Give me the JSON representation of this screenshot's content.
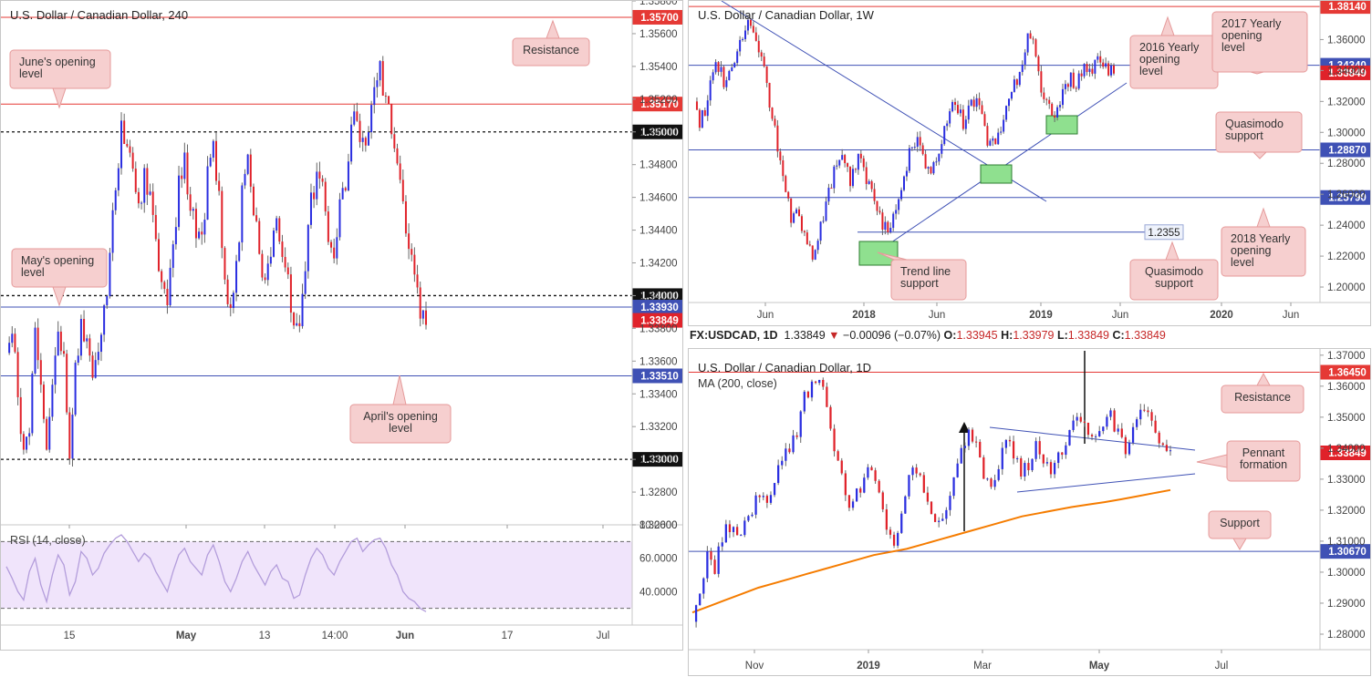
{
  "header_bar": {
    "symbol": "FX:USDCAD, 1D",
    "price": "1.33849",
    "arrow": "▼",
    "change": "−0.00096 (−0.07%)",
    "o_label": "O:",
    "o": "1.33945",
    "h_label": "H:",
    "h": "1.33979",
    "l_label": "L:",
    "l": "1.33849",
    "c_label": "C:",
    "c": "1.33849"
  },
  "colors": {
    "up": "#2a2ee0",
    "down": "#e0222a",
    "resistance": "#e53935",
    "support": "#3f51b5",
    "callout_bg": "#f6cfcf",
    "callout_border": "#e59a9a",
    "green_box": "#8fe08f",
    "ma": "#f57c00",
    "rsi_band": "#f0e4fb",
    "rsi_line": "#b39ddb"
  },
  "chart_data": [
    {
      "id": "h4",
      "type": "candlestick",
      "title": "U.S. Dollar / Canadian Dollar, 240",
      "ylim": [
        1.326,
        1.358
      ],
      "y_ticks": [
        "1.35800",
        "1.35600",
        "1.35400",
        "1.35200",
        "1.35000",
        "1.34800",
        "1.34600",
        "1.34400",
        "1.34200",
        "1.34000",
        "1.33800",
        "1.33600",
        "1.33400",
        "1.33200",
        "1.33000",
        "1.32800",
        "1.32600"
      ],
      "x_ticks": [
        "15",
        "May",
        "13",
        "14:00",
        "Jun",
        "17",
        "Jul"
      ],
      "levels": [
        {
          "value": 1.357,
          "label": "1.35700",
          "style": "solid",
          "color": "#e53935"
        },
        {
          "value": 1.3517,
          "label": "1.35170",
          "style": "solid",
          "color": "#e53935"
        },
        {
          "value": 1.35,
          "label": "1.35000",
          "style": "dashed",
          "color": "#111111"
        },
        {
          "value": 1.34,
          "label": "1.34000",
          "style": "dashed",
          "color": "#111111"
        },
        {
          "value": 1.3393,
          "label": "1.33930",
          "style": "solid",
          "color": "#3f51b5"
        },
        {
          "value": 1.33849,
          "label": "1.33849",
          "style": "price",
          "color": "#e53935"
        },
        {
          "value": 1.3351,
          "label": "1.33510",
          "style": "solid",
          "color": "#3f51b5"
        },
        {
          "value": 1.33,
          "label": "1.33000",
          "style": "dashed",
          "color": "#111111"
        }
      ],
      "callouts": [
        {
          "text": "Resistance"
        },
        {
          "text": "June's opening level"
        },
        {
          "text": "May's opening level"
        },
        {
          "text": "April's opening level"
        }
      ],
      "path": [
        1.3365,
        1.3378,
        1.334,
        1.33,
        1.332,
        1.3375,
        1.3338,
        1.3298,
        1.335,
        1.3386,
        1.3362,
        1.33,
        1.3352,
        1.339,
        1.337,
        1.3345,
        1.3362,
        1.3388,
        1.3425,
        1.347,
        1.35,
        1.3495,
        1.3478,
        1.345,
        1.3472,
        1.346,
        1.343,
        1.341,
        1.3388,
        1.343,
        1.3468,
        1.348,
        1.3455,
        1.344,
        1.343,
        1.3472,
        1.3495,
        1.3458,
        1.341,
        1.339,
        1.3418,
        1.346,
        1.3482,
        1.345,
        1.3428,
        1.3405,
        1.343,
        1.3445,
        1.342,
        1.341,
        1.3376,
        1.338,
        1.342,
        1.3455,
        1.3478,
        1.3468,
        1.344,
        1.343,
        1.3452,
        1.3472,
        1.3502,
        1.3512,
        1.349,
        1.3505,
        1.353,
        1.354,
        1.352,
        1.35,
        1.3482,
        1.345,
        1.343,
        1.342,
        1.339,
        1.3385
      ],
      "rsi": {
        "label": "RSI (14, close)",
        "ylim": [
          20,
          80
        ],
        "y_ticks": [
          "80.0000",
          "60.0000",
          "40.0000"
        ],
        "band": [
          30,
          70
        ],
        "values": [
          55,
          48,
          40,
          35,
          52,
          60,
          44,
          34,
          50,
          62,
          56,
          38,
          46,
          64,
          60,
          50,
          54,
          63,
          68,
          72,
          74,
          70,
          64,
          58,
          63,
          60,
          52,
          46,
          40,
          52,
          62,
          66,
          58,
          54,
          50,
          62,
          68,
          58,
          46,
          40,
          48,
          58,
          64,
          56,
          50,
          44,
          52,
          56,
          48,
          46,
          36,
          38,
          50,
          60,
          66,
          62,
          54,
          50,
          58,
          64,
          70,
          72,
          64,
          68,
          71,
          72,
          66,
          56,
          50,
          40,
          36,
          34,
          30,
          28
        ]
      }
    },
    {
      "id": "w1",
      "type": "candlestick",
      "title": "U.S. Dollar / Canadian Dollar, 1W",
      "ylim": [
        1.19,
        1.385
      ],
      "y_ticks": [
        "1.36000",
        "1.34000",
        "1.32000",
        "1.30000",
        "1.28000",
        "1.26000",
        "1.24000",
        "1.22000",
        "1.20000"
      ],
      "x_ticks": [
        "Jun",
        "2018",
        "Jun",
        "2019",
        "Jun",
        "2020",
        "Jun"
      ],
      "levels": [
        {
          "value": 1.3814,
          "label": "1.38140",
          "style": "solid",
          "color": "#e53935"
        },
        {
          "value": 1.3434,
          "label": "1.34340",
          "style": "solid",
          "color": "#3f51b5"
        },
        {
          "value": 1.33849,
          "label": "1.33849",
          "style": "price",
          "color": "#e53935"
        },
        {
          "value": 1.2887,
          "label": "1.28870",
          "style": "solid",
          "color": "#3f51b5"
        },
        {
          "value": 1.2579,
          "label": "1.25790",
          "style": "solid",
          "color": "#3f51b5"
        },
        {
          "value": 1.2355,
          "label": "1.2355",
          "style": "short",
          "color": "#3f51b5"
        }
      ],
      "callouts": [
        {
          "text": "2016 Yearly opening level"
        },
        {
          "text": "2017 Yearly opening level"
        },
        {
          "text": "Quasimodo support"
        },
        {
          "text": "2018 Yearly opening level"
        },
        {
          "text": "Quasimodo support"
        },
        {
          "text": "Trend line support"
        }
      ],
      "path": [
        1.32,
        1.305,
        1.315,
        1.335,
        1.345,
        1.338,
        1.33,
        1.34,
        1.35,
        1.362,
        1.37,
        1.365,
        1.35,
        1.34,
        1.32,
        1.3,
        1.28,
        1.26,
        1.245,
        1.25,
        1.24,
        1.23,
        1.22,
        1.23,
        1.245,
        1.26,
        1.275,
        1.285,
        1.28,
        1.27,
        1.28,
        1.288,
        1.27,
        1.26,
        1.25,
        1.24,
        1.235,
        1.245,
        1.26,
        1.275,
        1.285,
        1.295,
        1.29,
        1.28,
        1.27,
        1.285,
        1.295,
        1.305,
        1.32,
        1.315,
        1.305,
        1.315,
        1.32,
        1.315,
        1.3,
        1.29,
        1.295,
        1.305,
        1.315,
        1.325,
        1.335,
        1.345,
        1.36,
        1.365,
        1.335,
        1.325,
        1.315,
        1.31,
        1.32,
        1.33,
        1.335,
        1.33,
        1.338,
        1.342,
        1.34,
        1.345,
        1.343,
        1.34,
        1.3385
      ]
    },
    {
      "id": "d1",
      "type": "candlestick",
      "title": "U.S. Dollar / Canadian Dollar, 1D",
      "ylim": [
        1.275,
        1.372
      ],
      "y_ticks": [
        "1.37000",
        "1.36000",
        "1.35000",
        "1.34000",
        "1.33000",
        "1.32000",
        "1.31000",
        "1.30000",
        "1.29000",
        "1.28000"
      ],
      "x_ticks": [
        "Nov",
        "2019",
        "Mar",
        "May",
        "Jul"
      ],
      "levels": [
        {
          "value": 1.3645,
          "label": "1.36450",
          "style": "solid",
          "color": "#e53935"
        },
        {
          "value": 1.33849,
          "label": "1.33849",
          "style": "price",
          "color": "#e53935"
        },
        {
          "value": 1.3067,
          "label": "1.30670",
          "style": "solid",
          "color": "#3f51b5"
        }
      ],
      "indicator": {
        "label": "MA (200, close)",
        "color": "#f57c00",
        "values": [
          1.287,
          1.289,
          1.291,
          1.293,
          1.295,
          1.2965,
          1.298,
          1.2995,
          1.301,
          1.3025,
          1.304,
          1.3055,
          1.3065,
          1.3075,
          1.309,
          1.3105,
          1.312,
          1.3135,
          1.315,
          1.3165,
          1.318,
          1.319,
          1.32,
          1.321,
          1.3218,
          1.3226,
          1.3235,
          1.3245,
          1.3255,
          1.3265
        ]
      },
      "callouts": [
        {
          "text": "Resistance"
        },
        {
          "text": "Pennant formation"
        },
        {
          "text": "Support"
        }
      ],
      "path": [
        1.284,
        1.295,
        1.305,
        1.3,
        1.312,
        1.315,
        1.31,
        1.315,
        1.32,
        1.325,
        1.322,
        1.33,
        1.335,
        1.34,
        1.345,
        1.356,
        1.36,
        1.364,
        1.355,
        1.34,
        1.33,
        1.322,
        1.326,
        1.33,
        1.334,
        1.328,
        1.315,
        1.31,
        1.32,
        1.33,
        1.334,
        1.326,
        1.32,
        1.315,
        1.32,
        1.33,
        1.34,
        1.346,
        1.34,
        1.332,
        1.328,
        1.335,
        1.342,
        1.338,
        1.332,
        1.335,
        1.34,
        1.336,
        1.332,
        1.338,
        1.342,
        1.348,
        1.35,
        1.346,
        1.342,
        1.346,
        1.35,
        1.344,
        1.34,
        1.346,
        1.35,
        1.352,
        1.346,
        1.339,
        1.3385
      ]
    }
  ]
}
